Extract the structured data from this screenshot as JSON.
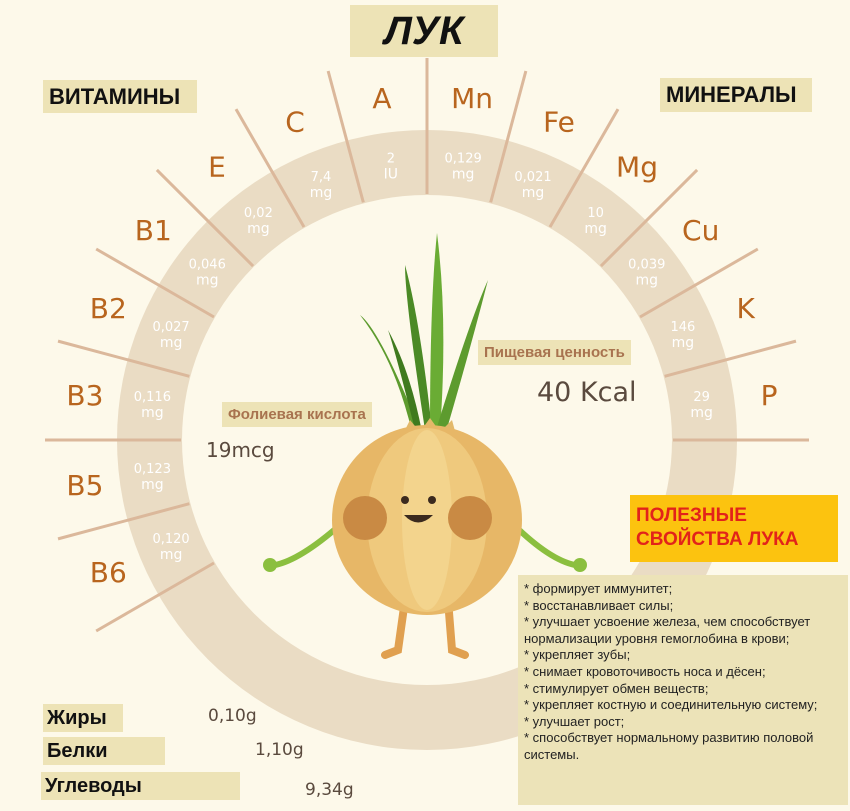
{
  "title": "ЛУК",
  "vitamins_heading": "ВИТАМИНЫ",
  "minerals_heading": "МИНЕРАЛЫ",
  "vitamins": [
    {
      "name": "A",
      "value": "2",
      "unit": "IU"
    },
    {
      "name": "C",
      "value": "7,4",
      "unit": "mg"
    },
    {
      "name": "E",
      "value": "0,02",
      "unit": "mg"
    },
    {
      "name": "B1",
      "value": "0,046",
      "unit": "mg"
    },
    {
      "name": "B2",
      "value": "0,027",
      "unit": "mg"
    },
    {
      "name": "B3",
      "value": "0,116",
      "unit": "mg"
    },
    {
      "name": "B5",
      "value": "0,123",
      "unit": "mg"
    },
    {
      "name": "B6",
      "value": "0,120",
      "unit": "mg"
    }
  ],
  "minerals": [
    {
      "name": "Mn",
      "value": "0,129",
      "unit": "mg"
    },
    {
      "name": "Fe",
      "value": "0,021",
      "unit": "mg"
    },
    {
      "name": "Mg",
      "value": "10",
      "unit": "mg"
    },
    {
      "name": "Cu",
      "value": "0,039",
      "unit": "mg"
    },
    {
      "name": "K",
      "value": "146",
      "unit": "mg"
    },
    {
      "name": "P",
      "value": "29",
      "unit": "mg"
    }
  ],
  "nutrition": {
    "label": "Пищевая ценность",
    "value": "40 Kcal"
  },
  "folic": {
    "label": "Фолиевая кислота",
    "value": "19mcg"
  },
  "macros": [
    {
      "label": "Жиры",
      "value": "0,10g"
    },
    {
      "label": "Белки",
      "value": "1,10g"
    },
    {
      "label": "Углеводы",
      "value": "9,34g"
    }
  ],
  "benefits": {
    "title_line1": "ПОЛЕЗНЫЕ",
    "title_line2": "СВОЙСТВА ЛУКА",
    "items": [
      "* формирует иммунитет;",
      "* восстанавливает силы;",
      "* улучшает усвоение железа, чем способствует нормализации уровня гемоглобина в крови;",
      "* укрепляет зубы;",
      "* снимает кровоточивость носа и дёсен;",
      "* стимулирует обмен веществ;",
      "* укрепляет костную и соединительную систему;",
      "* улучшает рост;",
      "* способствует нормальному развитию половой системы."
    ]
  },
  "colors": {
    "background": "#fdf9ea",
    "ring": "#eadcc4",
    "label": "#b8651e",
    "box": "#ede3b6",
    "accent": "#fcc30f",
    "accent_text": "#e2231a"
  }
}
